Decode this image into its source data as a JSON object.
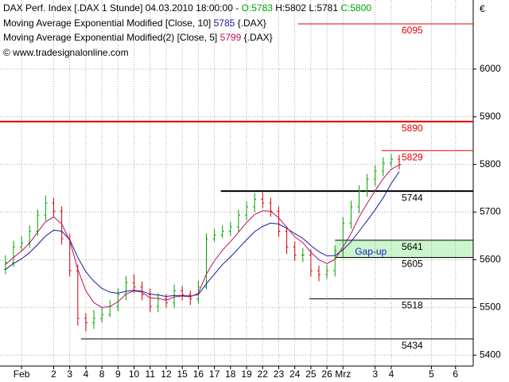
{
  "chart_data": {
    "type": "ohlc",
    "header": {
      "title": "DAX Perf. Index [.DAX  1 Stunde] 04.03.2010 18:00:00 -",
      "open": "O:5783",
      "high": "H:5802",
      "low": "L:5781",
      "close": "C:5800"
    },
    "copyright": "© www.tradesignalonline.com",
    "currency": "€",
    "x": [
      -1,
      -0.5,
      0,
      0.5,
      1,
      1.5,
      2,
      2.5,
      3,
      3.5,
      4,
      4.5,
      5,
      5.5,
      6,
      6.5,
      7,
      7.5,
      8,
      8.5,
      9,
      9.5,
      10,
      10.5,
      11,
      11.5,
      12,
      12.5,
      13,
      13.5,
      14,
      14.5,
      15,
      15.5,
      16,
      16.5,
      17,
      17.5,
      18,
      18.5,
      19,
      19.5,
      20,
      20.5,
      21,
      21.5,
      22,
      22.5,
      23,
      23.5
    ],
    "open": [
      5580,
      5594,
      5627,
      5635,
      5660,
      5694,
      5719,
      5702,
      5644,
      5577,
      5477,
      5468,
      5477,
      5485,
      5502,
      5527,
      5552,
      5543,
      5527,
      5502,
      5518,
      5510,
      5535,
      5527,
      5518,
      5543,
      5644,
      5652,
      5660,
      5669,
      5694,
      5711,
      5727,
      5719,
      5702,
      5660,
      5627,
      5610,
      5610,
      5577,
      5569,
      5577,
      5619,
      5677,
      5711,
      5744,
      5769,
      5786,
      5803,
      5811
    ],
    "high": [
      5610,
      5640,
      5650,
      5672,
      5706,
      5735,
      5730,
      5712,
      5655,
      5590,
      5488,
      5495,
      5500,
      5515,
      5540,
      5566,
      5570,
      5555,
      5540,
      5530,
      5528,
      5548,
      5545,
      5535,
      5556,
      5655,
      5665,
      5672,
      5680,
      5705,
      5722,
      5740,
      5742,
      5730,
      5712,
      5670,
      5638,
      5625,
      5622,
      5588,
      5590,
      5630,
      5690,
      5724,
      5756,
      5780,
      5798,
      5815,
      5822,
      5820
    ],
    "low": [
      5570,
      5585,
      5618,
      5625,
      5650,
      5682,
      5690,
      5632,
      5565,
      5462,
      5450,
      5455,
      5468,
      5480,
      5492,
      5515,
      5530,
      5515,
      5490,
      5490,
      5500,
      5498,
      5515,
      5505,
      5508,
      5538,
      5638,
      5645,
      5650,
      5658,
      5682,
      5700,
      5708,
      5690,
      5648,
      5612,
      5598,
      5595,
      5565,
      5555,
      5560,
      5565,
      5605,
      5665,
      5698,
      5732,
      5755,
      5775,
      5795,
      5790
    ],
    "close": [
      5594,
      5627,
      5635,
      5660,
      5694,
      5719,
      5702,
      5644,
      5577,
      5477,
      5468,
      5477,
      5485,
      5502,
      5527,
      5552,
      5543,
      5527,
      5502,
      5518,
      5510,
      5535,
      5527,
      5518,
      5543,
      5644,
      5652,
      5660,
      5669,
      5694,
      5711,
      5727,
      5719,
      5702,
      5660,
      5627,
      5610,
      5610,
      5577,
      5569,
      5577,
      5619,
      5677,
      5711,
      5744,
      5769,
      5786,
      5803,
      5811,
      5800
    ],
    "up_color": "#00a000",
    "down_color": "#d00000",
    "series": [
      {
        "name": "Moving Average Exponential Modified [Close, 10]",
        "last": 5785,
        "symbol": "{.DAX}",
        "color": "#1a1aa0",
        "values": [
          5580,
          5592,
          5602,
          5615,
          5632,
          5650,
          5662,
          5660,
          5642,
          5605,
          5575,
          5555,
          5540,
          5532,
          5530,
          5534,
          5536,
          5534,
          5528,
          5526,
          5523,
          5525,
          5525,
          5524,
          5527,
          5550,
          5570,
          5590,
          5606,
          5624,
          5642,
          5659,
          5670,
          5677,
          5675,
          5666,
          5655,
          5645,
          5630,
          5617,
          5608,
          5609,
          5621,
          5638,
          5660,
          5682,
          5705,
          5730,
          5760,
          5785
        ]
      },
      {
        "name": "Moving Average Exponential Modified(2) [Close, 5]",
        "last": 5799,
        "symbol": "{.DAX}",
        "color": "#c01060",
        "values": [
          5590,
          5605,
          5618,
          5635,
          5658,
          5680,
          5690,
          5675,
          5640,
          5580,
          5535,
          5510,
          5500,
          5502,
          5512,
          5528,
          5535,
          5532,
          5520,
          5519,
          5515,
          5522,
          5524,
          5522,
          5530,
          5570,
          5598,
          5620,
          5638,
          5658,
          5678,
          5695,
          5703,
          5702,
          5688,
          5668,
          5648,
          5636,
          5616,
          5600,
          5592,
          5601,
          5627,
          5655,
          5690,
          5718,
          5745,
          5770,
          5790,
          5799
        ]
      }
    ],
    "levels": [
      {
        "value": 6095,
        "x0": 17.2,
        "color": "#e00000",
        "width": 1
      },
      {
        "value": 5890,
        "x0": -1.34,
        "color": "#e00000",
        "width": 2
      },
      {
        "value": 5829,
        "x0": 22.4,
        "color": "#e00000",
        "width": 1
      },
      {
        "value": 5744,
        "x0": 12.4,
        "color": "#000000",
        "width": 2
      },
      {
        "value": 5641,
        "x0": 19.5,
        "color": "#000000",
        "width": 1
      },
      {
        "value": 5605,
        "x0": 19.5,
        "color": "#000000",
        "width": 1
      },
      {
        "value": 5518,
        "x0": 17.9,
        "color": "#000000",
        "width": 1
      },
      {
        "value": 5434,
        "x0": 3.7,
        "color": "#000000",
        "width": 1
      }
    ],
    "gap": {
      "label": "Gap-up",
      "from": 5605,
      "to": 5641,
      "x0": 19.5,
      "color": "#ccf5cc"
    },
    "xlim": [
      -1.34,
      28.1
    ],
    "xticks": [
      {
        "value": 0,
        "label": "Feb"
      },
      2,
      3,
      4,
      {
        "value": 5,
        "label": "8"
      },
      {
        "value": 6,
        "label": "9"
      },
      {
        "value": 7,
        "label": "10"
      },
      {
        "value": 8,
        "label": "11"
      },
      {
        "value": 9,
        "label": "12"
      },
      {
        "value": 10,
        "label": "15"
      },
      {
        "value": 11,
        "label": "16"
      },
      {
        "value": 12,
        "label": "17"
      },
      {
        "value": 13,
        "label": "18"
      },
      {
        "value": 14,
        "label": "19"
      },
      {
        "value": 15,
        "label": "22"
      },
      {
        "value": 16,
        "label": "23"
      },
      {
        "value": 17,
        "label": "24"
      },
      {
        "value": 18,
        "label": "25"
      },
      {
        "value": 19,
        "label": "26"
      },
      {
        "value": 20,
        "label": "Mrz"
      },
      {
        "value": 22,
        "label": "3"
      },
      {
        "value": 23,
        "label": "4"
      },
      {
        "value": 25.5,
        "label": "5"
      },
      {
        "value": 27,
        "label": "6"
      }
    ],
    "ylim": [
      5377,
      6145
    ],
    "yticks": [
      5400,
      5500,
      5600,
      5700,
      5800,
      5900,
      6000
    ],
    "grid": true
  }
}
